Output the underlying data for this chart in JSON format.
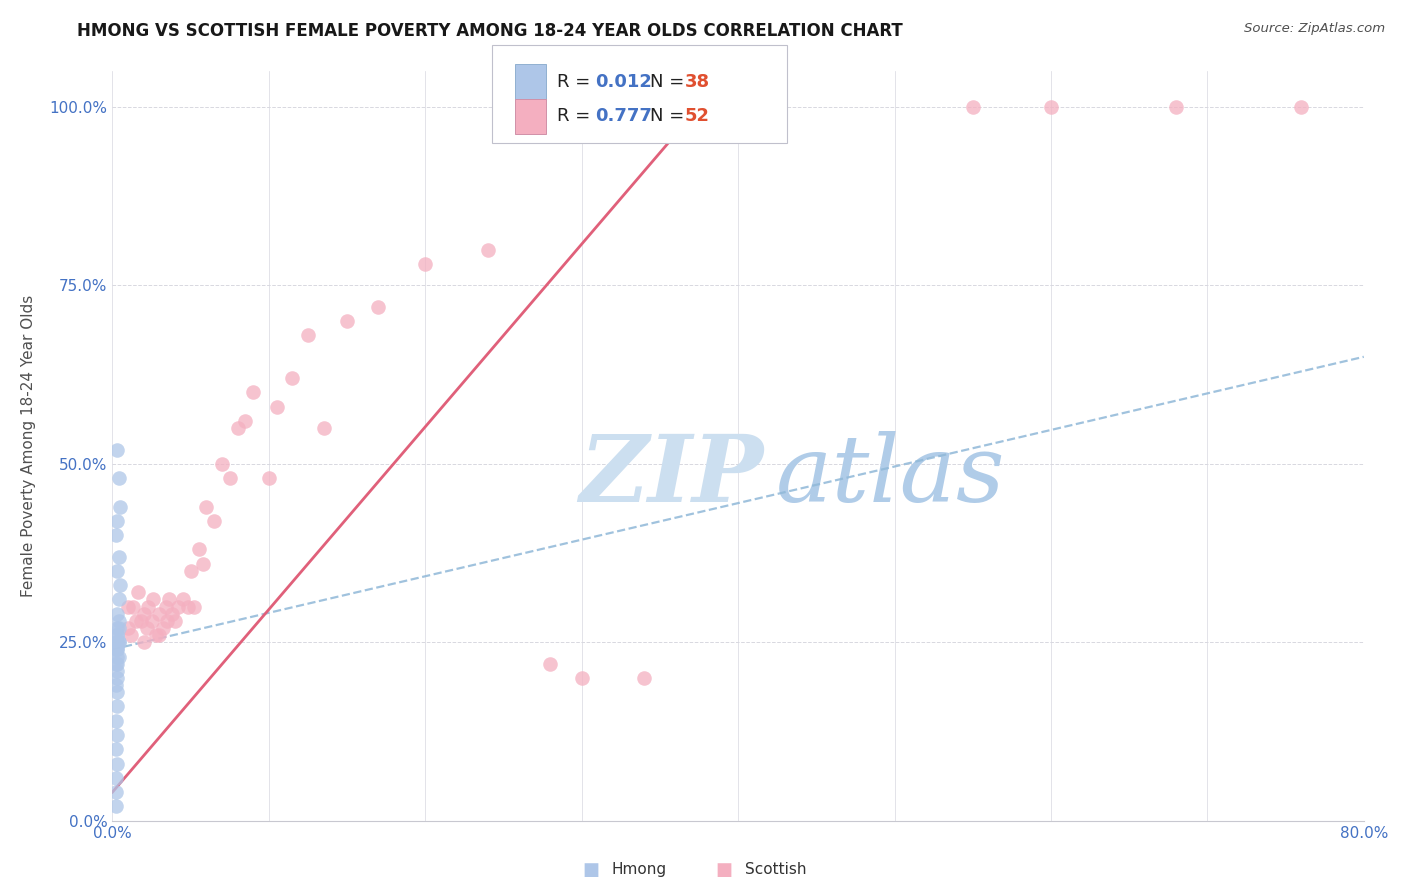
{
  "title": "HMONG VS SCOTTISH FEMALE POVERTY AMONG 18-24 YEAR OLDS CORRELATION CHART",
  "source": "Source: ZipAtlas.com",
  "ylabel": "Female Poverty Among 18-24 Year Olds",
  "xlim": [
    0.0,
    0.8
  ],
  "ylim": [
    0.0,
    1.05
  ],
  "yticks": [
    0.0,
    0.25,
    0.5,
    0.75,
    1.0
  ],
  "ytick_labels": [
    "0.0%",
    "25.0%",
    "50.0%",
    "75.0%",
    "100.0%"
  ],
  "xticks": [
    0.0,
    0.1,
    0.2,
    0.3,
    0.4,
    0.5,
    0.6,
    0.7,
    0.8
  ],
  "xtick_labels_show": [
    "0.0%",
    "",
    "",
    "",
    "",
    "",
    "",
    "",
    "80.0%"
  ],
  "hmong_color": "#aec6e8",
  "hmong_edge": "#aec6e8",
  "scottish_color": "#f4afc0",
  "scottish_edge": "#f4afc0",
  "hmong_line_color": "#90b8d8",
  "scottish_line_color": "#e0607a",
  "r_color": "#4472c4",
  "n_color": "#e05030",
  "grid_color": "#d8d8e0",
  "background": "#ffffff",
  "axis_label_color": "#4472c4",
  "ylabel_color": "#505050",
  "title_color": "#181818",
  "hmong_x": [
    0.003,
    0.004,
    0.005,
    0.003,
    0.002,
    0.004,
    0.003,
    0.005,
    0.004,
    0.003,
    0.004,
    0.003,
    0.004,
    0.003,
    0.003,
    0.004,
    0.003,
    0.003,
    0.004,
    0.003,
    0.002,
    0.003,
    0.004,
    0.003,
    0.003,
    0.002,
    0.003,
    0.003,
    0.002,
    0.003,
    0.003,
    0.002,
    0.003,
    0.002,
    0.003,
    0.002,
    0.002,
    0.002
  ],
  "hmong_y": [
    0.52,
    0.48,
    0.44,
    0.42,
    0.4,
    0.37,
    0.35,
    0.33,
    0.31,
    0.29,
    0.28,
    0.27,
    0.27,
    0.26,
    0.26,
    0.25,
    0.25,
    0.25,
    0.25,
    0.24,
    0.24,
    0.24,
    0.23,
    0.23,
    0.22,
    0.22,
    0.21,
    0.2,
    0.19,
    0.18,
    0.16,
    0.14,
    0.12,
    0.1,
    0.08,
    0.06,
    0.04,
    0.02
  ],
  "scottish_x": [
    0.01,
    0.01,
    0.012,
    0.013,
    0.015,
    0.016,
    0.018,
    0.02,
    0.02,
    0.022,
    0.023,
    0.025,
    0.026,
    0.028,
    0.03,
    0.03,
    0.032,
    0.034,
    0.035,
    0.036,
    0.038,
    0.04,
    0.042,
    0.045,
    0.048,
    0.05,
    0.052,
    0.055,
    0.058,
    0.06,
    0.065,
    0.07,
    0.075,
    0.08,
    0.085,
    0.09,
    0.1,
    0.105,
    0.115,
    0.125,
    0.135,
    0.15,
    0.17,
    0.2,
    0.24,
    0.28,
    0.3,
    0.34,
    0.55,
    0.6,
    0.68,
    0.76
  ],
  "scottish_y": [
    0.27,
    0.3,
    0.26,
    0.3,
    0.28,
    0.32,
    0.28,
    0.25,
    0.29,
    0.27,
    0.3,
    0.28,
    0.31,
    0.26,
    0.26,
    0.29,
    0.27,
    0.3,
    0.28,
    0.31,
    0.29,
    0.28,
    0.3,
    0.31,
    0.3,
    0.35,
    0.3,
    0.38,
    0.36,
    0.44,
    0.42,
    0.5,
    0.48,
    0.55,
    0.56,
    0.6,
    0.48,
    0.58,
    0.62,
    0.68,
    0.55,
    0.7,
    0.72,
    0.78,
    0.8,
    0.22,
    0.2,
    0.2,
    1.0,
    1.0,
    1.0,
    1.0
  ],
  "hmong_trend": [
    0.24,
    0.65
  ],
  "scottish_trend_x": [
    0.0,
    0.375
  ],
  "scottish_trend_y": [
    0.04,
    1.0
  ]
}
